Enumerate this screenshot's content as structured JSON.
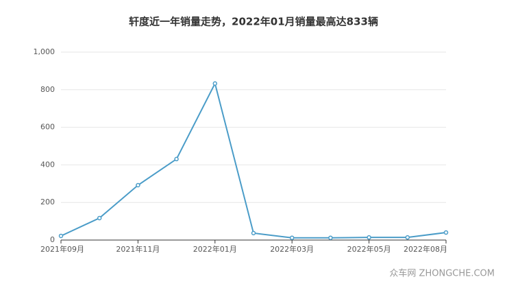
{
  "chart_data": {
    "type": "line",
    "title": "轩度近一年销量走势，2022年01月销量最高达833辆",
    "categories": [
      "2021年09月",
      null,
      "2021年11月",
      null,
      "2022年01月",
      null,
      "2022年03月",
      null,
      "2022年05月",
      null,
      "2022年08月"
    ],
    "values": [
      22,
      117,
      292,
      431,
      833,
      37,
      12,
      12,
      14,
      14,
      40
    ],
    "color": "#4a9cc8",
    "ylim": [
      0,
      1000
    ],
    "yticks": [
      0,
      200,
      400,
      600,
      800,
      {
        "value": 1000,
        "label": "1,000"
      }
    ],
    "grid": true,
    "watermark": "众车网 ZHONGCHE.COM"
  }
}
